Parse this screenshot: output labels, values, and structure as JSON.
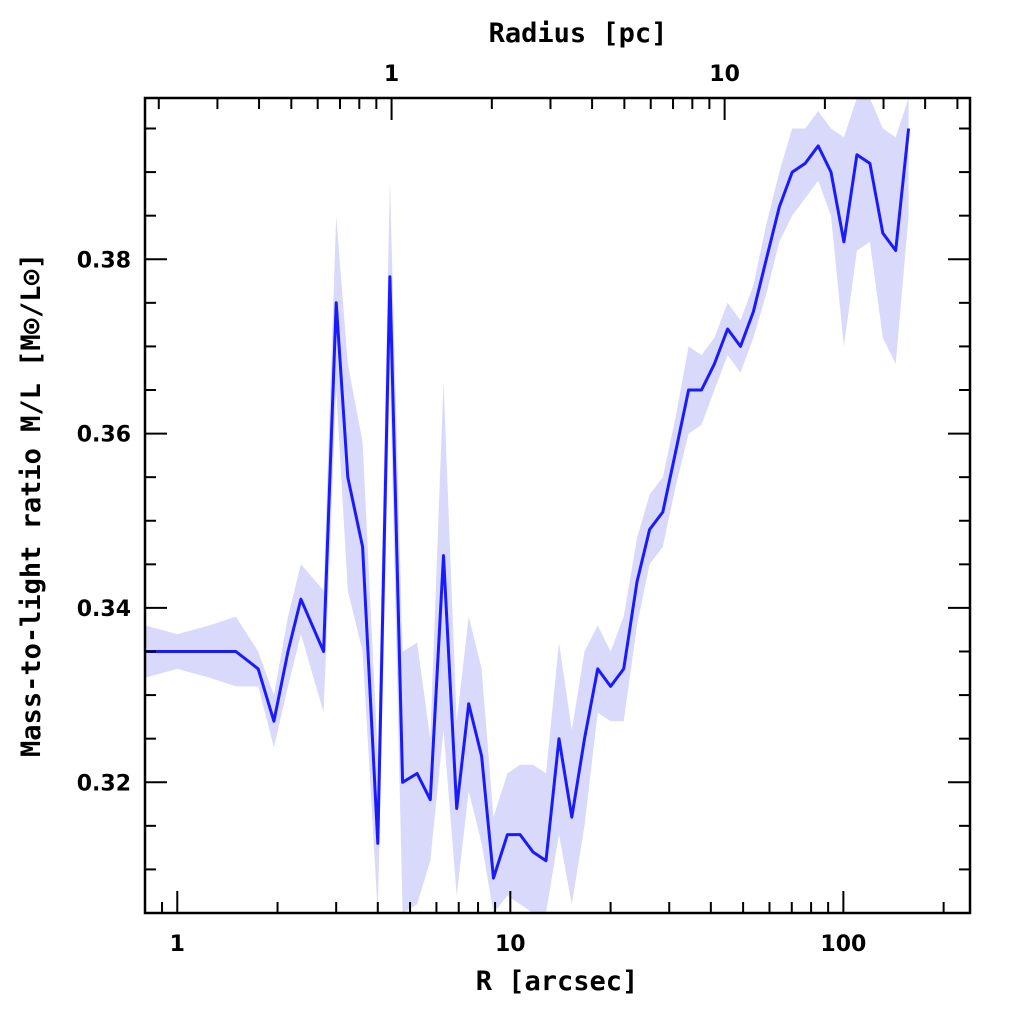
{
  "chart_data": {
    "type": "line",
    "xscale": "log",
    "xlim": [
      0.8,
      240
    ],
    "ylim": [
      0.305,
      0.3985
    ],
    "xlabel": "R [arcsec]",
    "ylabel": "Mass-to-light ratio M/L [M⊙/L⊙]",
    "top_xlabel": "Radius [pc]",
    "x_tick_labels": [
      {
        "value": 1,
        "label": "1"
      },
      {
        "value": 10,
        "label": "10"
      },
      {
        "value": 100,
        "label": "100"
      }
    ],
    "top_tick_labels": [
      {
        "value": 4.4,
        "label": "1"
      },
      {
        "value": 44,
        "label": "10"
      }
    ],
    "y_tick_labels": [
      {
        "value": 0.32,
        "label": "0.32"
      },
      {
        "value": 0.34,
        "label": "0.34"
      },
      {
        "value": 0.36,
        "label": "0.36"
      },
      {
        "value": 0.38,
        "label": "0.38"
      }
    ],
    "colors": {
      "line": "#1a1aff",
      "band": "#d9d9fb",
      "frame": "#000000"
    },
    "grid": false,
    "legend": "none",
    "series": [
      {
        "x": [
          0.8,
          1.0,
          1.25,
          1.5,
          1.75,
          1.95,
          2.15,
          2.35,
          2.75,
          3.0,
          3.25,
          3.6,
          4.0,
          4.35,
          4.75,
          5.25,
          5.75,
          6.3,
          6.9,
          7.5,
          8.2,
          8.9,
          9.8,
          10.7,
          11.7,
          12.8,
          14.0,
          15.3,
          16.7,
          18.3,
          20.0,
          21.9,
          24.0,
          26.2,
          28.7,
          31.4,
          34.3,
          37.5,
          41.0,
          44.9,
          49.1,
          53.7,
          58.7,
          64.2,
          70.2,
          76.8,
          84.0,
          91.8,
          100.4,
          109.8,
          120.1,
          131.3,
          143.6,
          157.0
        ],
        "y": [
          0.335,
          0.335,
          0.335,
          0.335,
          0.333,
          0.327,
          0.335,
          0.341,
          0.335,
          0.375,
          0.355,
          0.347,
          0.313,
          0.378,
          0.32,
          0.321,
          0.318,
          0.346,
          0.317,
          0.329,
          0.323,
          0.309,
          0.314,
          0.314,
          0.312,
          0.311,
          0.325,
          0.316,
          0.325,
          0.333,
          0.331,
          0.333,
          0.343,
          0.349,
          0.351,
          0.358,
          0.365,
          0.365,
          0.368,
          0.372,
          0.37,
          0.374,
          0.38,
          0.386,
          0.39,
          0.391,
          0.393,
          0.39,
          0.382,
          0.392,
          0.391,
          0.383,
          0.381,
          0.395
        ],
        "y_low": [
          0.332,
          0.333,
          0.332,
          0.331,
          0.331,
          0.324,
          0.331,
          0.337,
          0.328,
          0.365,
          0.342,
          0.335,
          0.303,
          0.367,
          0.305,
          0.306,
          0.311,
          0.326,
          0.307,
          0.319,
          0.313,
          0.302,
          0.307,
          0.306,
          0.302,
          0.301,
          0.314,
          0.306,
          0.315,
          0.328,
          0.327,
          0.327,
          0.338,
          0.345,
          0.347,
          0.354,
          0.36,
          0.361,
          0.365,
          0.369,
          0.367,
          0.371,
          0.376,
          0.382,
          0.385,
          0.387,
          0.389,
          0.385,
          0.37,
          0.381,
          0.382,
          0.371,
          0.368,
          0.385
        ]
      }
    ]
  }
}
